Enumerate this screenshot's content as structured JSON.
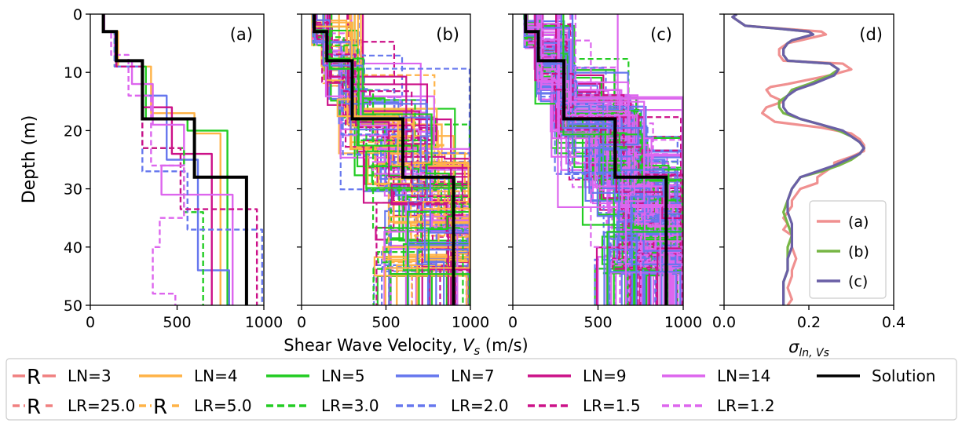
{
  "figure": {
    "ylabel": "Depth (m)",
    "xlabel_left": "Shear Wave Velocity, ",
    "xlabel_sym": "V",
    "xlabel_sub": "s",
    "xlabel_unit": " (m/s)",
    "sigma_main": "σ",
    "sigma_sub": "ln, Vs"
  },
  "chart_data": [
    {
      "type": "line",
      "panel_label": "(a)",
      "xlim": [
        0,
        1000
      ],
      "ylim": [
        50,
        0
      ],
      "xticks": [
        "0",
        "500",
        "1000"
      ],
      "yticks": [
        "0",
        "10",
        "20",
        "30",
        "40",
        "50"
      ],
      "solution": {
        "depth": [
          0,
          3,
          3,
          8,
          8,
          18,
          18,
          28,
          28,
          50
        ],
        "vs": [
          75,
          75,
          150,
          150,
          300,
          300,
          600,
          600,
          900,
          900
        ]
      },
      "series": [
        {
          "legend_ref": "LN=4",
          "color": "#ffb347",
          "dash": false,
          "depth": [
            0,
            3,
            3,
            9,
            9,
            17,
            17,
            20.5,
            20.5,
            50
          ],
          "vs": [
            80,
            80,
            160,
            160,
            350,
            350,
            600,
            600,
            750,
            750
          ]
        },
        {
          "legend_ref": "LN=5",
          "color": "#22cc22",
          "dash": false,
          "depth": [
            0,
            3,
            3,
            9,
            9,
            18,
            18,
            20,
            20,
            50
          ],
          "vs": [
            80,
            80,
            150,
            150,
            320,
            320,
            560,
            560,
            790,
            790
          ]
        },
        {
          "legend_ref": "LN=7",
          "color": "#6677ee",
          "dash": false,
          "depth": [
            0,
            3,
            3,
            9,
            9,
            14,
            14,
            25,
            25,
            44,
            44,
            50
          ],
          "vs": [
            80,
            80,
            150,
            150,
            300,
            300,
            440,
            440,
            620,
            620,
            800,
            800
          ]
        },
        {
          "legend_ref": "LN=9",
          "color": "#cc1188",
          "dash": false,
          "depth": [
            0,
            3,
            3,
            8,
            8,
            16,
            16,
            24,
            24,
            50
          ],
          "vs": [
            80,
            80,
            150,
            150,
            300,
            300,
            470,
            470,
            700,
            700
          ]
        },
        {
          "legend_ref": "LN=14",
          "color": "#dd66ee",
          "dash": false,
          "depth": [
            0,
            3,
            3,
            8,
            8,
            12,
            12,
            19,
            19,
            26,
            26,
            31,
            31,
            50
          ],
          "vs": [
            80,
            80,
            140,
            140,
            240,
            240,
            360,
            360,
            540,
            540,
            410,
            410,
            820,
            820
          ]
        },
        {
          "legend_ref": "LR=3.0",
          "color": "#22cc22",
          "dash": true,
          "depth": [
            0,
            3,
            3,
            9,
            9,
            23,
            23,
            34,
            34,
            50
          ],
          "vs": [
            80,
            80,
            140,
            140,
            300,
            300,
            540,
            540,
            650,
            650
          ]
        },
        {
          "legend_ref": "LR=2.0",
          "color": "#6677ee",
          "dash": true,
          "depth": [
            0,
            3,
            3,
            9,
            9,
            27,
            27,
            37,
            37,
            50
          ],
          "vs": [
            80,
            80,
            140,
            140,
            300,
            300,
            560,
            560,
            990,
            990
          ]
        },
        {
          "legend_ref": "LR=1.5",
          "color": "#cc1188",
          "dash": true,
          "depth": [
            0,
            3,
            3,
            9,
            9,
            23,
            23,
            33.5,
            33.5,
            50
          ],
          "vs": [
            80,
            80,
            150,
            150,
            300,
            300,
            520,
            520,
            960,
            960
          ]
        },
        {
          "legend_ref": "LR=1.2",
          "color": "#dd66ee",
          "dash": true,
          "depth": [
            0,
            3,
            3,
            7,
            7,
            14,
            14,
            26,
            26,
            35,
            35,
            40,
            40,
            48,
            48,
            50
          ],
          "vs": [
            80,
            80,
            120,
            120,
            220,
            220,
            350,
            350,
            540,
            540,
            400,
            400,
            360,
            360,
            490,
            490
          ]
        }
      ]
    },
    {
      "type": "line",
      "panel_label": "(b)",
      "xlim": [
        0,
        1000
      ],
      "ylim": [
        50,
        0
      ],
      "xticks": [
        "0",
        "500",
        "1000"
      ],
      "yticks": [
        "0",
        "10",
        "20",
        "30",
        "40",
        "50"
      ],
      "solution": {
        "depth": [
          0,
          3,
          3,
          8,
          8,
          18,
          18,
          28,
          28,
          50
        ],
        "vs": [
          75,
          75,
          150,
          150,
          300,
          300,
          600,
          600,
          900,
          900
        ]
      },
      "ensemble": {
        "colors": [
          "#dd66ee",
          "#cc1188",
          "#6677ee",
          "#22cc22",
          "#ffb347"
        ],
        "count": 80,
        "seed": 11,
        "spread": 0.95,
        "dash_fraction": 0.35
      }
    },
    {
      "type": "line",
      "panel_label": "(c)",
      "xlim": [
        0,
        1000
      ],
      "ylim": [
        50,
        0
      ],
      "xticks": [
        "0",
        "500",
        "1000"
      ],
      "yticks": [
        "0",
        "10",
        "20",
        "30",
        "40",
        "50"
      ],
      "solution": {
        "depth": [
          0,
          3,
          3,
          8,
          8,
          18,
          18,
          28,
          28,
          50
        ],
        "vs": [
          75,
          75,
          150,
          150,
          300,
          300,
          600,
          600,
          900,
          900
        ]
      },
      "ensemble": {
        "colors": [
          "#dd66ee",
          "#dd66ee",
          "#cc1188",
          "#6677ee",
          "#22cc22"
        ],
        "count": 160,
        "seed": 29,
        "spread": 0.75,
        "dash_fraction": 0.3
      }
    },
    {
      "type": "line",
      "panel_label": "(d)",
      "xlim": [
        0,
        0.4
      ],
      "ylim": [
        50,
        0
      ],
      "xticks": [
        "0.0",
        "0.2",
        "0.4"
      ],
      "yticks": [
        "0",
        "10",
        "20",
        "30",
        "40",
        "50"
      ],
      "legend_position": "lower-right",
      "series": [
        {
          "name": "(a)",
          "color": "#f09090",
          "depth": [
            0,
            0.5,
            1,
            2,
            2.5,
            3,
            3.5,
            4.5,
            5,
            6,
            7,
            8,
            8.5,
            9.5,
            10.5,
            12,
            12.5,
            13,
            14,
            15,
            16,
            17,
            17.5,
            18.5,
            19.5,
            20.5,
            21.5,
            22.5,
            23.5,
            24.5,
            25.5,
            26,
            27,
            28,
            29,
            30,
            31,
            32,
            33,
            34,
            35,
            36,
            37,
            38,
            40,
            42,
            44,
            45,
            47,
            49,
            50
          ],
          "values": [
            0.03,
            0.02,
            0.03,
            0.05,
            0.14,
            0.23,
            0.24,
            0.18,
            0.15,
            0.13,
            0.13,
            0.14,
            0.28,
            0.3,
            0.25,
            0.15,
            0.11,
            0.1,
            0.11,
            0.14,
            0.1,
            0.09,
            0.1,
            0.12,
            0.23,
            0.3,
            0.32,
            0.33,
            0.33,
            0.3,
            0.26,
            0.26,
            0.24,
            0.22,
            0.22,
            0.18,
            0.17,
            0.16,
            0.16,
            0.15,
            0.14,
            0.15,
            0.14,
            0.16,
            0.16,
            0.17,
            0.16,
            0.16,
            0.15,
            0.16,
            0.15
          ]
        },
        {
          "name": "(b)",
          "color": "#77b645",
          "depth": [
            0,
            0.5,
            1,
            2,
            2.5,
            3,
            3.5,
            4.5,
            5,
            6,
            7,
            8,
            8.5,
            9.5,
            10.5,
            12,
            13,
            14,
            15,
            16,
            17,
            18,
            19,
            20,
            21,
            22,
            23,
            24,
            25,
            26,
            27,
            28,
            30,
            32,
            34,
            36,
            38,
            40,
            42,
            44,
            46,
            48,
            50
          ],
          "values": [
            0.03,
            0.02,
            0.03,
            0.05,
            0.13,
            0.2,
            0.21,
            0.16,
            0.15,
            0.14,
            0.14,
            0.15,
            0.25,
            0.27,
            0.25,
            0.2,
            0.16,
            0.15,
            0.13,
            0.13,
            0.14,
            0.18,
            0.23,
            0.27,
            0.3,
            0.32,
            0.33,
            0.32,
            0.3,
            0.27,
            0.23,
            0.18,
            0.16,
            0.15,
            0.14,
            0.15,
            0.16,
            0.15,
            0.15,
            0.15,
            0.14,
            0.14,
            0.14
          ]
        },
        {
          "name": "(c)",
          "color": "#6a5fa6",
          "depth": [
            0,
            0.5,
            1,
            2,
            2.5,
            3,
            3.5,
            4.5,
            5,
            6,
            7,
            8,
            8.5,
            9.5,
            10.5,
            12,
            13,
            14,
            15,
            16,
            17,
            18,
            19,
            20,
            21,
            22,
            23,
            24,
            25,
            26,
            27,
            28,
            30,
            32,
            34,
            36,
            38,
            40,
            42,
            44,
            46,
            48,
            50
          ],
          "values": [
            0.03,
            0.02,
            0.03,
            0.05,
            0.13,
            0.2,
            0.21,
            0.16,
            0.15,
            0.14,
            0.14,
            0.15,
            0.25,
            0.27,
            0.26,
            0.21,
            0.17,
            0.15,
            0.14,
            0.14,
            0.15,
            0.18,
            0.23,
            0.28,
            0.3,
            0.32,
            0.33,
            0.32,
            0.29,
            0.26,
            0.22,
            0.18,
            0.16,
            0.15,
            0.15,
            0.16,
            0.16,
            0.16,
            0.15,
            0.15,
            0.14,
            0.14,
            0.14
          ]
        }
      ]
    }
  ],
  "legend": {
    "entries": [
      {
        "label": "LN=3",
        "color": "#f08080",
        "dash": false,
        "marker": "R"
      },
      {
        "label": "LN=4",
        "color": "#ffb347",
        "dash": false,
        "marker": ""
      },
      {
        "label": "LN=5",
        "color": "#22cc22",
        "dash": false,
        "marker": ""
      },
      {
        "label": "LN=7",
        "color": "#6677ee",
        "dash": false,
        "marker": ""
      },
      {
        "label": "LN=9",
        "color": "#cc1188",
        "dash": false,
        "marker": ""
      },
      {
        "label": "LN=14",
        "color": "#dd66ee",
        "dash": false,
        "marker": ""
      },
      {
        "label": "Solution",
        "color": "#000000",
        "dash": false,
        "marker": ""
      },
      {
        "label": "LR=25.0",
        "color": "#f08080",
        "dash": true,
        "marker": "R"
      },
      {
        "label": "LR=5.0",
        "color": "#ffb347",
        "dash": true,
        "marker": "R"
      },
      {
        "label": "LR=3.0",
        "color": "#22cc22",
        "dash": true,
        "marker": ""
      },
      {
        "label": "LR=2.0",
        "color": "#6677ee",
        "dash": true,
        "marker": ""
      },
      {
        "label": "LR=1.5",
        "color": "#cc1188",
        "dash": true,
        "marker": ""
      },
      {
        "label": "LR=1.2",
        "color": "#dd66ee",
        "dash": true,
        "marker": ""
      }
    ]
  }
}
